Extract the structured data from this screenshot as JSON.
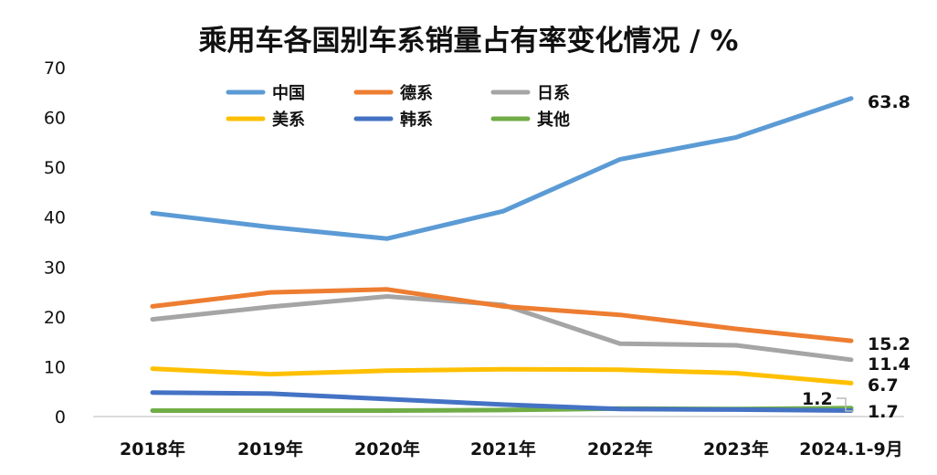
{
  "chart_data": {
    "type": "line",
    "title": "乘用车各国别车系销量占有率变化情况 / %",
    "categories": [
      "2018年",
      "2019年",
      "2020年",
      "2021年",
      "2022年",
      "2023年",
      "2024.1-9月"
    ],
    "ylim": [
      0,
      70
    ],
    "yticks": [
      0,
      10,
      20,
      30,
      40,
      50,
      60,
      70
    ],
    "grid": false,
    "legend_position": "top-left",
    "series": [
      {
        "name": "中国",
        "color": "#5b9bd5",
        "values": [
          40.8,
          38.0,
          35.7,
          41.2,
          51.6,
          56.0,
          63.8
        ],
        "end_label": "63.8"
      },
      {
        "name": "德系",
        "color": "#ed7d31",
        "values": [
          22.1,
          24.9,
          25.5,
          22.1,
          20.4,
          17.6,
          15.2
        ],
        "end_label": "15.2"
      },
      {
        "name": "日系",
        "color": "#a5a5a5",
        "values": [
          19.5,
          22.0,
          24.1,
          22.4,
          14.6,
          14.3,
          11.4
        ],
        "end_label": "11.4"
      },
      {
        "name": "美系",
        "color": "#ffc000",
        "values": [
          9.6,
          8.5,
          9.2,
          9.5,
          9.4,
          8.7,
          6.7
        ],
        "end_label": "6.7"
      },
      {
        "name": "韩系",
        "color": "#4472c4",
        "values": [
          4.8,
          4.6,
          3.5,
          2.4,
          1.5,
          1.4,
          1.2
        ],
        "end_label": "1.2"
      },
      {
        "name": "其他",
        "color": "#70ad47",
        "values": [
          1.2,
          1.2,
          1.2,
          1.3,
          1.6,
          1.5,
          1.7
        ],
        "end_label": "1.7"
      }
    ]
  }
}
